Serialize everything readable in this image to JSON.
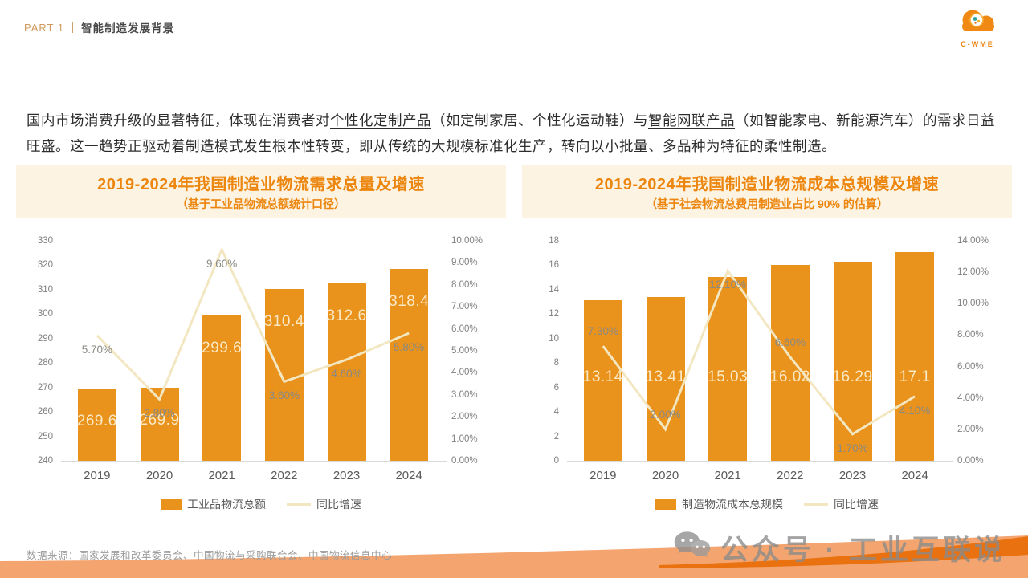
{
  "header": {
    "part_label": "PART 1",
    "section_title": "智能制造发展背景",
    "logo_text": "C-WME"
  },
  "intro": {
    "segments": [
      {
        "text": "国内市场消费升级的显著特征，体现在消费者对",
        "underline": false
      },
      {
        "text": "个性化定制产品",
        "underline": true
      },
      {
        "text": "（如定制家居、个性化运动鞋）与",
        "underline": false
      },
      {
        "text": "智能网联产品",
        "underline": true
      },
      {
        "text": "（如智能家电、新能源汽车）的需求日益旺盛。这一趋势正驱动着制造模式发生根本性转变，即从传统的大规模标准化生产，转向以小批量、多品种为特征的柔性制造。",
        "underline": false
      }
    ]
  },
  "chart_data": [
    {
      "type": "bar+line",
      "title": "2019-2024年我国制造业物流需求总量及增速",
      "subtitle": "（基于工业品物流总额统计口径）",
      "categories": [
        "2019",
        "2020",
        "2021",
        "2022",
        "2023",
        "2024"
      ],
      "bars": {
        "name": "工业品物流总额",
        "values": [
          269.6,
          269.9,
          299.6,
          310.4,
          312.6,
          318.4
        ],
        "labels": [
          "269.6",
          "269.9",
          "299.6",
          "310.4",
          "312.6",
          "318.4"
        ]
      },
      "line": {
        "name": "同比增速",
        "values": [
          5.7,
          2.8,
          9.6,
          3.6,
          4.6,
          5.8
        ],
        "labels": [
          "5.70%",
          "2.80%",
          "9.60%",
          "3.60%",
          "4.60%",
          "5.80%"
        ],
        "label_side": [
          "below",
          "below",
          "below",
          "below",
          "below",
          "below"
        ]
      },
      "ylim": [
        240,
        330
      ],
      "yticks": [
        "330",
        "320",
        "310",
        "300",
        "290",
        "280",
        "270",
        "260",
        "250",
        "240"
      ],
      "y2lim": [
        0,
        10
      ],
      "y2ticks": [
        "10.00%",
        "9.00%",
        "8.00%",
        "7.00%",
        "6.00%",
        "5.00%",
        "4.00%",
        "3.00%",
        "2.00%",
        "1.00%",
        "0.00%"
      ],
      "bar_label_mode": "near-top",
      "grid": "off",
      "legend_position": "bottom"
    },
    {
      "type": "bar+line",
      "title": "2019-2024年我国制造业物流成本总规模及增速",
      "subtitle": "（基于社会物流总费用制造业占比 90% 的估算）",
      "categories": [
        "2019",
        "2020",
        "2021",
        "2022",
        "2023",
        "2024"
      ],
      "bars": {
        "name": "制造物流成本总规模",
        "values": [
          13.14,
          13.41,
          15.03,
          16.02,
          16.29,
          17.1
        ],
        "labels": [
          "13.14",
          "13.41",
          "15.03",
          "16.02",
          "16.29",
          "17.1"
        ]
      },
      "line": {
        "name": "同比增速",
        "values": [
          7.3,
          2.0,
          12.1,
          6.6,
          1.7,
          4.1
        ],
        "labels": [
          "7.30%",
          "2.00%",
          "12.10%",
          "6.60%",
          "1.70%",
          "4.10%"
        ],
        "label_side": [
          "above",
          "above",
          "below",
          "above",
          "below",
          "below"
        ]
      },
      "ylim": [
        0,
        18
      ],
      "yticks": [
        "18",
        "16",
        "14",
        "12",
        "10",
        "8",
        "6",
        "4",
        "2",
        "0"
      ],
      "y2lim": [
        0,
        14
      ],
      "y2ticks": [
        "14.00%",
        "12.00%",
        "10.00%",
        "8.00%",
        "6.00%",
        "4.00%",
        "2.00%",
        "0.00%"
      ],
      "bar_label_mode": "mid",
      "grid": "off",
      "legend_position": "bottom"
    }
  ],
  "footer": {
    "source": "数据来源：国家发展和改革委员会、中国物流与采购联合会、中国物流信息中心"
  },
  "watermark": {
    "icon": "wechat-icon",
    "text": "公众号 · 工业互联说"
  },
  "colors": {
    "bar": "#e9921c",
    "growth_line": "#f3e7c2",
    "title_orange": "#ec860e",
    "banner_bg": "#fcf3e2",
    "swoosh_light": "#f4a46e",
    "swoosh_dark": "#e9710f"
  }
}
